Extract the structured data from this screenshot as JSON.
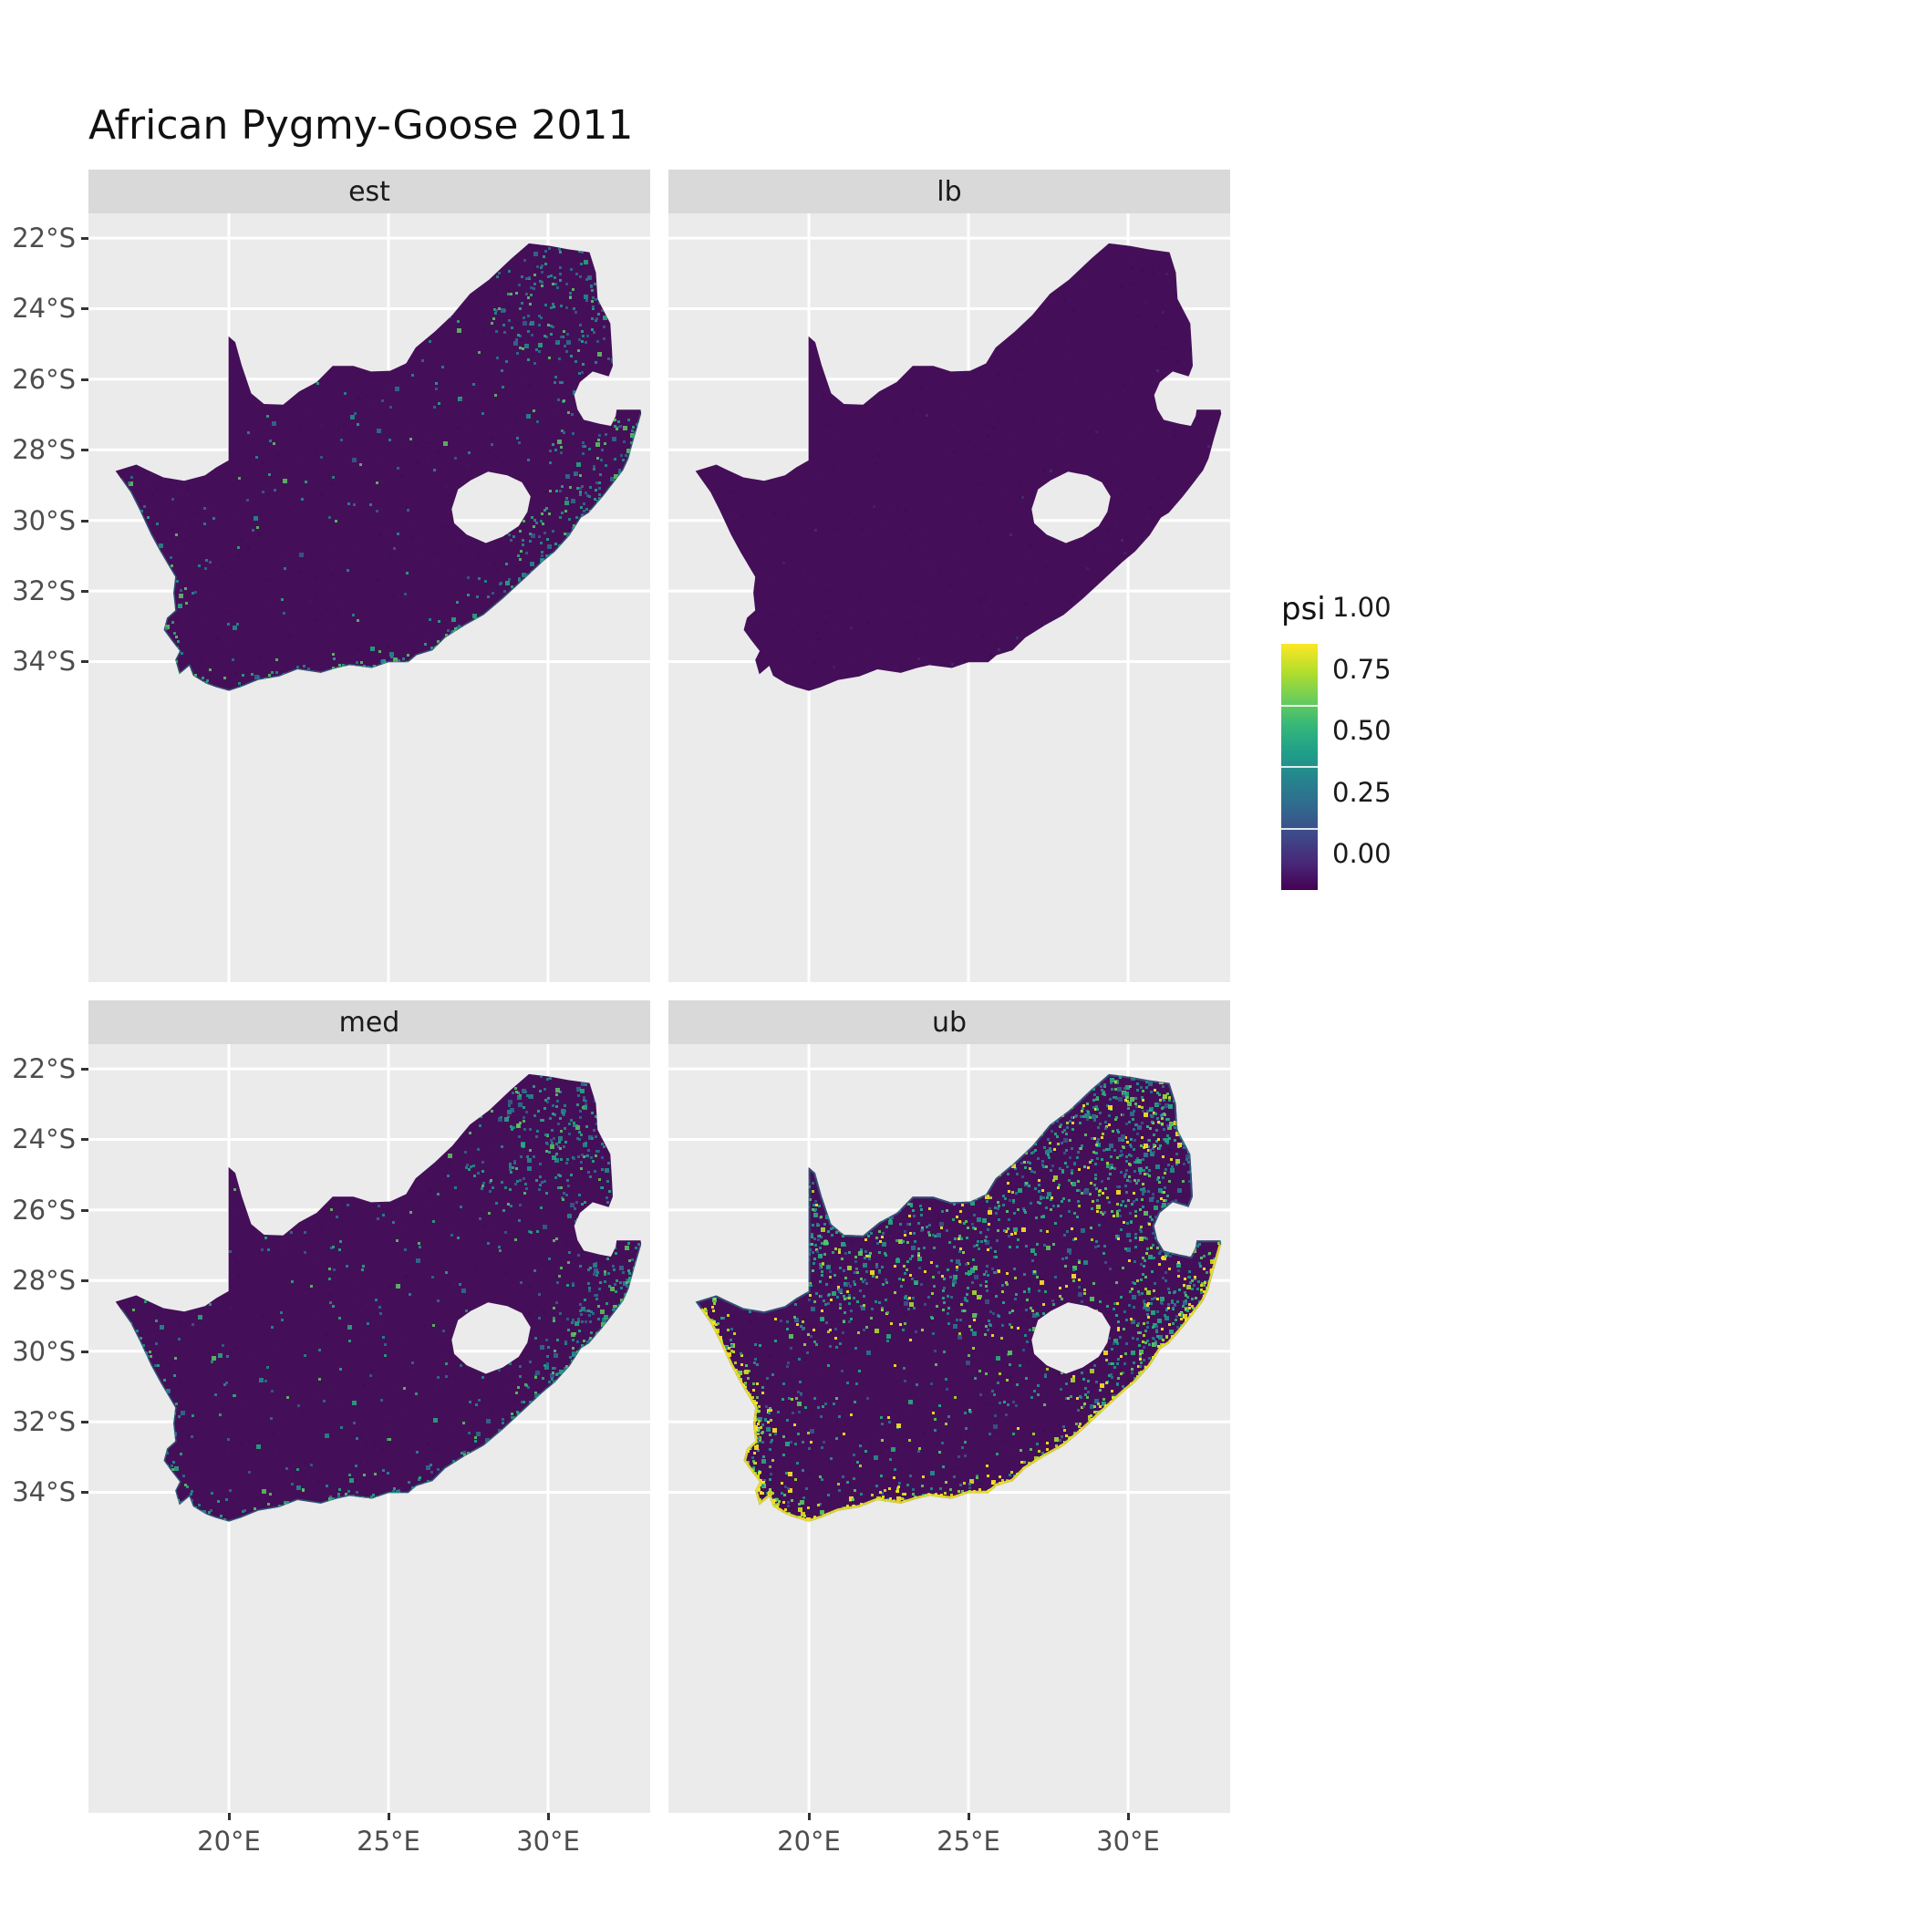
{
  "title": "African Pygmy-Goose 2011",
  "legend": {
    "title": "psi",
    "entries": [
      {
        "value": 1.0,
        "label": "1.00"
      },
      {
        "value": 0.75,
        "label": "0.75"
      },
      {
        "value": 0.5,
        "label": "0.50"
      },
      {
        "value": 0.25,
        "label": "0.25"
      },
      {
        "value": 0.0,
        "label": "0.00"
      }
    ],
    "gradient": [
      "#440154",
      "#482878",
      "#3e4989",
      "#31688e",
      "#26828e",
      "#1f9e89",
      "#35b779",
      "#6ece58",
      "#b5de2b",
      "#fde725"
    ]
  },
  "facets": [
    {
      "id": "est",
      "label": "est"
    },
    {
      "id": "lb",
      "label": "lb"
    },
    {
      "id": "med",
      "label": "med"
    },
    {
      "id": "ub",
      "label": "ub"
    }
  ],
  "axes": {
    "x": {
      "ticks": [
        {
          "value": 20,
          "label": "20°E"
        },
        {
          "value": 25,
          "label": "25°E"
        },
        {
          "value": 30,
          "label": "30°E"
        }
      ]
    },
    "y": {
      "ticks": [
        {
          "value": 22,
          "label": "22°S"
        },
        {
          "value": 24,
          "label": "24°S"
        },
        {
          "value": 26,
          "label": "26°S"
        },
        {
          "value": 28,
          "label": "28°S"
        },
        {
          "value": 30,
          "label": "30°S"
        },
        {
          "value": 32,
          "label": "32°S"
        },
        {
          "value": 34,
          "label": "34°S"
        }
      ]
    }
  },
  "colors": {
    "panel_bg": "#ebebeb",
    "strip_bg": "#d9d9d9",
    "grid": "#ffffff",
    "axis_text": "#4d4d4d",
    "tick_mark": "#333333",
    "map_base": "#440f58",
    "noise_dark": "#38084a",
    "noise_light": "#4c1668"
  },
  "geometry": {
    "coast_start": 47,
    "outer": [
      [
        16.45,
        28.6
      ],
      [
        17.1,
        28.42
      ],
      [
        17.4,
        28.55
      ],
      [
        17.95,
        28.78
      ],
      [
        18.6,
        28.88
      ],
      [
        19.25,
        28.72
      ],
      [
        19.6,
        28.5
      ],
      [
        19.99,
        28.3
      ],
      [
        19.99,
        24.78
      ],
      [
        20.2,
        24.95
      ],
      [
        20.4,
        25.6
      ],
      [
        20.7,
        26.4
      ],
      [
        21.1,
        26.7
      ],
      [
        21.7,
        26.72
      ],
      [
        22.2,
        26.35
      ],
      [
        22.75,
        26.08
      ],
      [
        23.25,
        25.62
      ],
      [
        23.9,
        25.62
      ],
      [
        24.45,
        25.78
      ],
      [
        25.05,
        25.76
      ],
      [
        25.55,
        25.55
      ],
      [
        25.85,
        25.1
      ],
      [
        26.45,
        24.65
      ],
      [
        27.0,
        24.18
      ],
      [
        27.55,
        23.58
      ],
      [
        28.15,
        23.18
      ],
      [
        28.85,
        22.58
      ],
      [
        29.4,
        22.15
      ],
      [
        30.05,
        22.22
      ],
      [
        30.65,
        22.32
      ],
      [
        31.3,
        22.4
      ],
      [
        31.5,
        22.98
      ],
      [
        31.55,
        23.72
      ],
      [
        31.95,
        24.42
      ],
      [
        32.0,
        25.12
      ],
      [
        32.03,
        25.62
      ],
      [
        31.9,
        25.92
      ],
      [
        31.4,
        25.78
      ],
      [
        31.0,
        26.08
      ],
      [
        30.82,
        26.45
      ],
      [
        30.92,
        26.85
      ],
      [
        31.12,
        27.15
      ],
      [
        31.62,
        27.26
      ],
      [
        31.97,
        27.32
      ],
      [
        32.12,
        27.04
      ],
      [
        32.15,
        26.86
      ],
      [
        32.9,
        26.86
      ],
      [
        32.92,
        26.98
      ],
      [
        32.68,
        27.72
      ],
      [
        32.52,
        28.25
      ],
      [
        32.35,
        28.58
      ],
      [
        31.98,
        29.02
      ],
      [
        31.72,
        29.32
      ],
      [
        31.28,
        29.78
      ],
      [
        31.03,
        29.92
      ],
      [
        30.68,
        30.42
      ],
      [
        30.22,
        30.88
      ],
      [
        29.82,
        31.18
      ],
      [
        29.18,
        31.72
      ],
      [
        28.58,
        32.22
      ],
      [
        27.98,
        32.68
      ],
      [
        27.38,
        32.98
      ],
      [
        26.78,
        33.32
      ],
      [
        26.38,
        33.68
      ],
      [
        25.88,
        33.82
      ],
      [
        25.62,
        34.02
      ],
      [
        25.0,
        34.02
      ],
      [
        24.48,
        34.18
      ],
      [
        23.78,
        34.1
      ],
      [
        23.38,
        34.18
      ],
      [
        22.88,
        34.32
      ],
      [
        22.15,
        34.22
      ],
      [
        21.58,
        34.42
      ],
      [
        20.92,
        34.52
      ],
      [
        20.38,
        34.72
      ],
      [
        20.0,
        34.83
      ],
      [
        19.58,
        34.72
      ],
      [
        19.28,
        34.62
      ],
      [
        18.88,
        34.4
      ],
      [
        18.76,
        34.12
      ],
      [
        18.45,
        34.36
      ],
      [
        18.32,
        33.95
      ],
      [
        18.46,
        33.7
      ],
      [
        18.2,
        33.4
      ],
      [
        17.96,
        33.1
      ],
      [
        18.06,
        32.76
      ],
      [
        18.32,
        32.55
      ],
      [
        18.26,
        32.05
      ],
      [
        18.32,
        31.6
      ],
      [
        17.86,
        30.9
      ],
      [
        17.56,
        30.4
      ],
      [
        17.2,
        29.7
      ],
      [
        16.92,
        29.2
      ],
      [
        16.62,
        28.82
      ]
    ],
    "lesotho": [
      [
        26.98,
        29.68
      ],
      [
        27.18,
        29.12
      ],
      [
        27.58,
        28.86
      ],
      [
        28.12,
        28.62
      ],
      [
        28.72,
        28.72
      ],
      [
        29.18,
        28.92
      ],
      [
        29.45,
        29.32
      ],
      [
        29.35,
        29.76
      ],
      [
        29.08,
        30.16
      ],
      [
        28.58,
        30.46
      ],
      [
        28.05,
        30.64
      ],
      [
        27.45,
        30.4
      ],
      [
        27.06,
        30.08
      ]
    ]
  },
  "speckles": {
    "est": {
      "seed": 11,
      "interior_n": 700,
      "coast_n": 420,
      "noise_n": 450,
      "base_w": 0.035,
      "coast_jitter": 0.45,
      "opacity": 0.85,
      "east_weighted_coast": true,
      "interior_colors": [
        "#2c728e",
        "#2c728e",
        "#21918c",
        "#21918c",
        "#355f8d",
        "#27ad81",
        "#5ec962"
      ],
      "coast_colors": [
        "#21918c",
        "#27ad81",
        "#2c728e",
        "#5ec962"
      ],
      "clusters": [
        {
          "lon": 30.6,
          "lat": 23.9,
          "slon": 1.7,
          "slat": 1.3,
          "w": 0.55
        },
        {
          "lon": 31.5,
          "lat": 28.9,
          "slon": 0.8,
          "slat": 1.7,
          "w": 0.5
        },
        {
          "lon": 30.0,
          "lat": 30.6,
          "slon": 1.0,
          "slat": 0.8,
          "w": 0.35
        }
      ],
      "coast_stroke": {
        "color": "#21918c",
        "width": 3,
        "opacity": 0.5
      }
    },
    "lb": {
      "seed": 22,
      "interior_n": 80,
      "coast_n": 40,
      "noise_n": 450,
      "base_w": 0.02,
      "coast_jitter": 0.4,
      "opacity": 0.4,
      "east_weighted_coast": true,
      "interior_colors": [
        "#453781",
        "#3b528b"
      ],
      "coast_colors": [
        "#3b528b",
        "#453781"
      ],
      "clusters": [],
      "coast_stroke": null
    },
    "med": {
      "seed": 33,
      "interior_n": 1000,
      "coast_n": 520,
      "noise_n": 450,
      "base_w": 0.05,
      "coast_jitter": 0.45,
      "opacity": 0.85,
      "east_weighted_coast": true,
      "interior_colors": [
        "#2c728e",
        "#2c728e",
        "#21918c",
        "#21918c",
        "#27ad81",
        "#27ad81",
        "#355f8d",
        "#5ec962"
      ],
      "coast_colors": [
        "#21918c",
        "#27ad81",
        "#2c728e",
        "#5ec962"
      ],
      "clusters": [
        {
          "lon": 30.6,
          "lat": 23.9,
          "slon": 1.7,
          "slat": 1.3,
          "w": 0.65
        },
        {
          "lon": 31.5,
          "lat": 28.9,
          "slon": 0.8,
          "slat": 1.7,
          "w": 0.6
        },
        {
          "lon": 30.0,
          "lat": 30.6,
          "slon": 1.0,
          "slat": 0.8,
          "w": 0.45
        }
      ],
      "coast_stroke": {
        "color": "#21918c",
        "width": 3,
        "opacity": 0.55
      }
    },
    "ub": {
      "seed": 44,
      "interior_n": 3000,
      "coast_n": 1000,
      "noise_n": 450,
      "base_w": 0.1,
      "coast_jitter": 0.3,
      "opacity": 0.9,
      "east_weighted_coast": false,
      "interior_colors": [
        "#2c728e",
        "#2c728e",
        "#21918c",
        "#21918c",
        "#27ad81",
        "#27ad81",
        "#5ec962",
        "#3b528b",
        "#aadc32",
        "#fde725"
      ],
      "coast_colors": [
        "#fde725",
        "#fde725",
        "#d8e219",
        "#aadc32",
        "#5ec962",
        "#21918c"
      ],
      "clusters": [
        {
          "lon": 25.0,
          "lat": 24.8,
          "slon": 4.5,
          "slat": 2.0,
          "w": 0.55
        },
        {
          "lon": 30.6,
          "lat": 23.6,
          "slon": 1.8,
          "slat": 1.4,
          "w": 0.9
        },
        {
          "lon": 20.5,
          "lat": 27.6,
          "slon": 1.2,
          "slat": 1.2,
          "w": 0.7
        },
        {
          "lon": 25.5,
          "lat": 28.2,
          "slon": 1.4,
          "slat": 0.9,
          "w": 0.55
        },
        {
          "lon": 31.3,
          "lat": 28.8,
          "slon": 0.9,
          "slat": 1.8,
          "w": 0.85
        },
        {
          "lon": 29.5,
          "lat": 30.8,
          "slon": 1.2,
          "slat": 1.0,
          "w": 0.55
        },
        {
          "lon": 18.9,
          "lat": 33.0,
          "slon": 0.9,
          "slat": 1.2,
          "w": 0.4
        }
      ],
      "outline_stroke": {
        "color": "#2a788e",
        "width": 4,
        "opacity": 0.6
      },
      "coast_stroke": {
        "color": "#fde725",
        "width": 5,
        "opacity": 0.85
      }
    }
  },
  "chart_data": {
    "type": "heatmap",
    "subtype": "faceted raster occupancy maps (2x2 grid) of South Africa",
    "title": "African Pygmy-Goose 2011",
    "facets": [
      "est",
      "lb",
      "med",
      "ub"
    ],
    "fill_variable": "psi",
    "fill_limits": [
      0,
      1
    ],
    "fill_breaks": [
      0.0,
      0.25,
      0.5,
      0.75,
      1.0
    ],
    "fill_break_labels": [
      "0.00",
      "0.25",
      "0.50",
      "0.75",
      "1.00"
    ],
    "palette": "viridis",
    "legend_position": "right",
    "grid": true,
    "x_axis": {
      "ticks_deg_E": [
        20,
        25,
        30
      ],
      "labels": [
        "20°E",
        "25°E",
        "30°E"
      ]
    },
    "y_axis": {
      "ticks_deg_S": [
        22,
        24,
        26,
        28,
        30,
        32,
        34
      ],
      "labels": [
        "22°S",
        "24°S",
        "26°S",
        "28°S",
        "30°S",
        "32°S",
        "34°S"
      ]
    },
    "map_extent": {
      "lon_E": [
        16.45,
        32.9
      ],
      "lat_S": [
        22.15,
        34.83
      ],
      "holes": [
        "Lesotho"
      ],
      "notches": [
        "Eswatini"
      ]
    },
    "facet_summaries": {
      "est": "Estimate: psi near 0 over most of South Africa; scattered values ~0.2-0.6 in the northeast (Limpopo lowveld) and along the KwaZulu-Natal east coast.",
      "lb": "Lower bound: psi approximately 0 essentially everywhere (uniform dark purple).",
      "med": "Median: similar to estimate - near 0 with sparse moderate values along the east coast, escarpment and northeast.",
      "ub": "Upper bound: widespread psi ~0.2-0.6 across the northern interior and escarpment, with psi near 1 (yellow) fringes along the south, west and east coastlines."
    }
  }
}
